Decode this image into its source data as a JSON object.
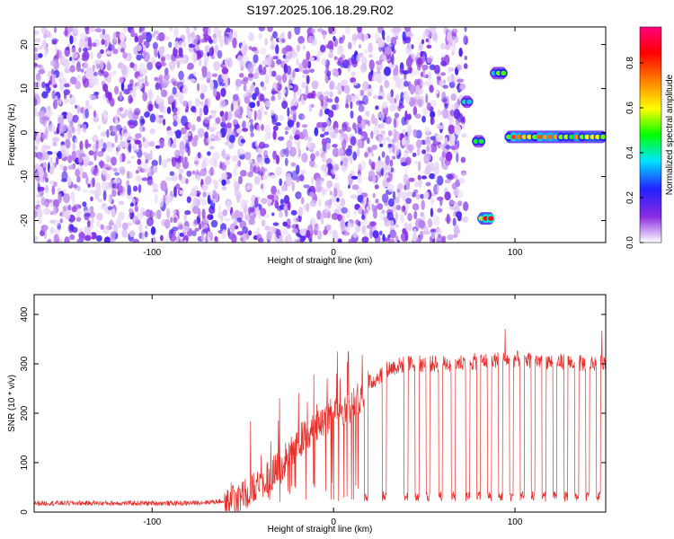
{
  "chart_data": [
    {
      "type": "heatmap",
      "title": "S197.2025.106.18.29.R02",
      "xlabel": "Height of straight line (km)",
      "ylabel": "Frequency (Hz)",
      "xlim": [
        -165,
        150
      ],
      "ylim": [
        -25,
        24
      ],
      "xticks": [
        -100,
        0,
        100
      ],
      "yticks": [
        20,
        10,
        0,
        -10,
        -20
      ],
      "colorbar": {
        "label": "Normalized spectral amplitude",
        "ticks": [
          0.0,
          0.2,
          0.4,
          0.6,
          0.8
        ],
        "range": [
          0,
          0.96
        ],
        "colormap": [
          "#ffffff",
          "#8a2be2",
          "#2222ff",
          "#00e5ff",
          "#00ff00",
          "#ffff00",
          "#ff8000",
          "#ff0000",
          "#ff0080"
        ]
      },
      "features": [
        {
          "name": "noise-field",
          "x_range": [
            -165,
            73
          ],
          "freq_range": [
            -25,
            24
          ],
          "level": 0.1
        },
        {
          "name": "line-a",
          "x_range": [
            71,
            76
          ],
          "freq": 7,
          "level": 0.5
        },
        {
          "name": "line-b",
          "x_range": [
            77,
            83
          ],
          "freq": -2,
          "level": 0.45
        },
        {
          "name": "line-c",
          "x_range": [
            80,
            88
          ],
          "freq": -19.5,
          "level": 0.85
        },
        {
          "name": "line-d",
          "x_range": [
            87,
            95
          ],
          "freq": 13.5,
          "level": 0.55
        },
        {
          "name": "line-e",
          "x_range": [
            95,
            150
          ],
          "freq": -1,
          "level": 0.75
        }
      ]
    },
    {
      "type": "line",
      "xlabel": "Height of straight line (km)",
      "ylabel": "SNR (10 * v/v)",
      "xlim": [
        -165,
        150
      ],
      "ylim": [
        0,
        440
      ],
      "xticks": [
        -100,
        0,
        100
      ],
      "yticks": [
        0,
        100,
        200,
        300,
        400
      ],
      "color": "#e8302a",
      "x": [
        -165,
        -140,
        -120,
        -100,
        -80,
        -60,
        -50,
        -40,
        -30,
        -20,
        -10,
        0,
        10,
        20,
        30,
        40,
        60,
        80,
        100,
        120,
        140,
        150
      ],
      "y": [
        18,
        18,
        18,
        18,
        18,
        22,
        30,
        60,
        90,
        140,
        170,
        200,
        215,
        260,
        290,
        300,
        300,
        305,
        310,
        305,
        300,
        305
      ],
      "dropouts": [
        18,
        28,
        40,
        46,
        52,
        59,
        66,
        74,
        80,
        86,
        92,
        98,
        104,
        110,
        116,
        122,
        128,
        134,
        140,
        146
      ],
      "dropout_level": 35
    }
  ]
}
